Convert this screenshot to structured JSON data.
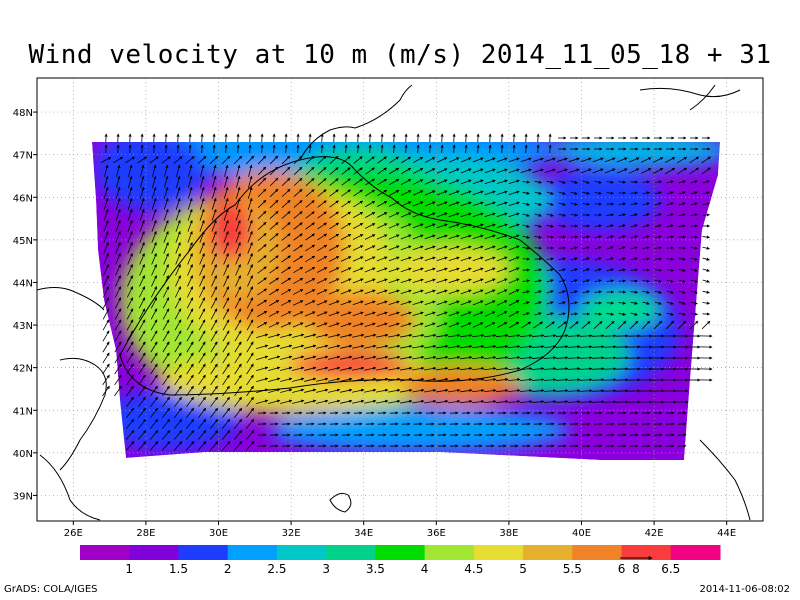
{
  "title": "Wind velocity at 10 m (m/s) 2014_11_05_18 + 31",
  "map": {
    "lon_range": [
      25,
      45
    ],
    "lat_range": [
      38.4,
      48.8
    ],
    "lon_ticks": [
      "26E",
      "28E",
      "30E",
      "32E",
      "34E",
      "36E",
      "38E",
      "40E",
      "42E",
      "44E"
    ],
    "lat_ticks": [
      "39N",
      "40N",
      "41N",
      "42N",
      "43N",
      "44N",
      "45N",
      "46N",
      "47N",
      "48N"
    ],
    "grid": "dotted"
  },
  "colorbar": {
    "colors": [
      "#a000c8",
      "#8200dc",
      "#1e3cff",
      "#00a0ff",
      "#00c8c8",
      "#00d28c",
      "#00dc00",
      "#a0e632",
      "#e6dc32",
      "#e6af2d",
      "#f08228",
      "#fa3c3c",
      "#f00082"
    ],
    "labels": [
      "1",
      "1.5",
      "2",
      "2.5",
      "3",
      "3.5",
      "4",
      "4.5",
      "5",
      "5.5",
      "6",
      "6.5"
    ]
  },
  "vector_key": {
    "label": "8"
  },
  "footer": {
    "credit": "GrADS: COLA/IGES",
    "timestamp": "2014-11-06-08:02"
  }
}
